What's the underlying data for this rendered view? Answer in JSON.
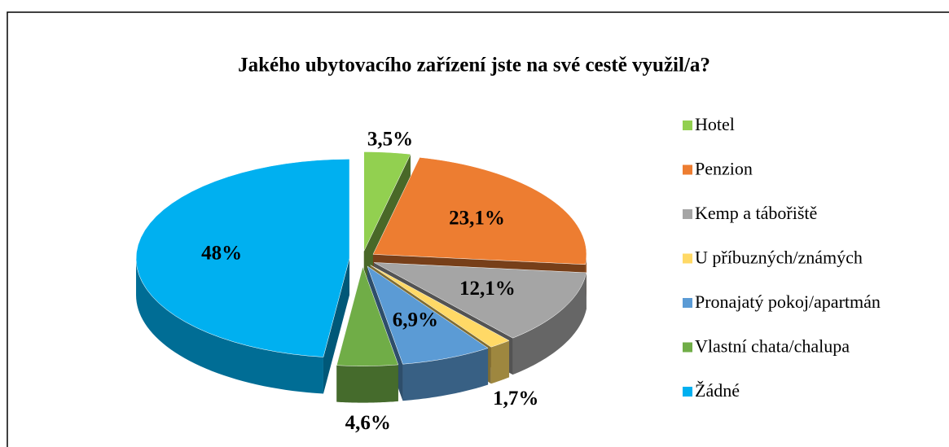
{
  "chart_data": {
    "type": "pie3d",
    "title": "Jakého ubytovacího zařízení jste na své cestě využil/a?",
    "categories": [
      "Hotel",
      "Penzion",
      "Kemp a tábořiště",
      "U příbuzných/známých",
      "Pronajatý pokoj/apartmán",
      "Vlastní chata/chalupa",
      "Žádné"
    ],
    "values": [
      3.5,
      23.1,
      12.1,
      1.7,
      6.9,
      4.6,
      48
    ],
    "value_labels": [
      "3,5%",
      "23,1%",
      "12,1%",
      "1,7%",
      "6,9%",
      "4,6%",
      "48%"
    ],
    "colors": [
      "#92d050",
      "#ed7d31",
      "#a5a5a5",
      "#ffd966",
      "#5b9bd5",
      "#70ad47",
      "#00b0f0"
    ],
    "legend": "right"
  }
}
